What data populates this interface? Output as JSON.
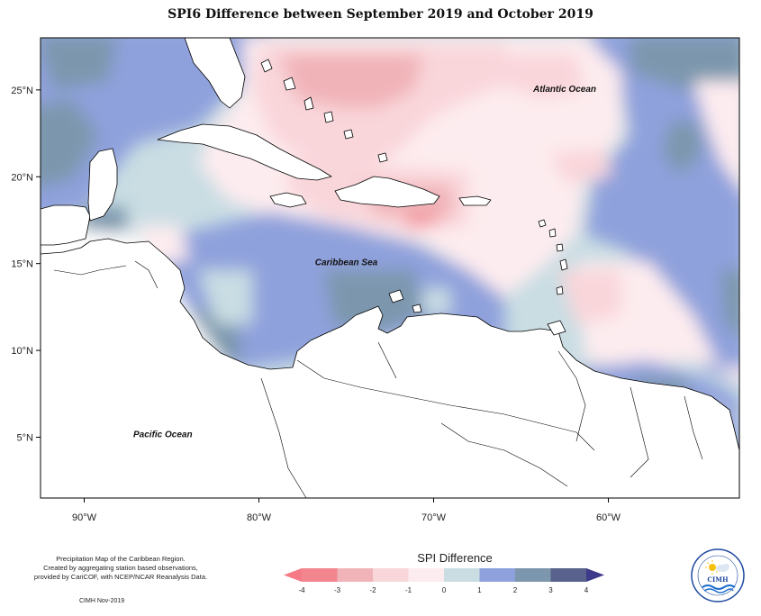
{
  "title": "SPI6 Difference between September 2019 and October 2019",
  "map": {
    "lon_range": [
      -92.5,
      -52.5
    ],
    "lat_range": [
      1.5,
      28
    ],
    "x_ticks": [
      {
        "lon": -90,
        "label": "90°W"
      },
      {
        "lon": -80,
        "label": "80°W"
      },
      {
        "lon": -70,
        "label": "70°W"
      },
      {
        "lon": -60,
        "label": "60°W"
      }
    ],
    "y_ticks": [
      {
        "lat": 25,
        "label": "25°N"
      },
      {
        "lat": 20,
        "label": "20°N"
      },
      {
        "lat": 15,
        "label": "15°N"
      },
      {
        "lat": 10,
        "label": "10°N"
      },
      {
        "lat": 5,
        "label": "5°N"
      }
    ],
    "labels": [
      {
        "name": "atlantic",
        "text": "Atlantic Ocean",
        "lon": -62.5,
        "lat": 24.9
      },
      {
        "name": "caribbean",
        "text": "Caribbean Sea",
        "lon": -75.0,
        "lat": 14.9
      },
      {
        "name": "pacific",
        "text": "Pacific Ocean",
        "lon": -85.5,
        "lat": 5.0
      }
    ]
  },
  "legend": {
    "title": "SPI Difference",
    "ticks": [
      "-4",
      "-3",
      "-2",
      "-1",
      "0",
      "1",
      "2",
      "3",
      "4"
    ],
    "colors": [
      "#f2858e",
      "#f0b3b8",
      "#f9d6da",
      "#fdecef",
      "#c9dde3",
      "#8fa1dc",
      "#7c97ad",
      "#58628c"
    ],
    "low_arrow_color": "#f47a86",
    "high_arrow_color": "#3e3a8a"
  },
  "credit": {
    "line1": "Precipitation Map of the Caribbean Region.",
    "line2": "Created by aggregating station based observations,",
    "line3": "provided by CariCOF, with NCEP/NCAR Reanalysis Data.",
    "date": "CIMH Nov-2019"
  },
  "logo": {
    "text": "CIMH"
  }
}
